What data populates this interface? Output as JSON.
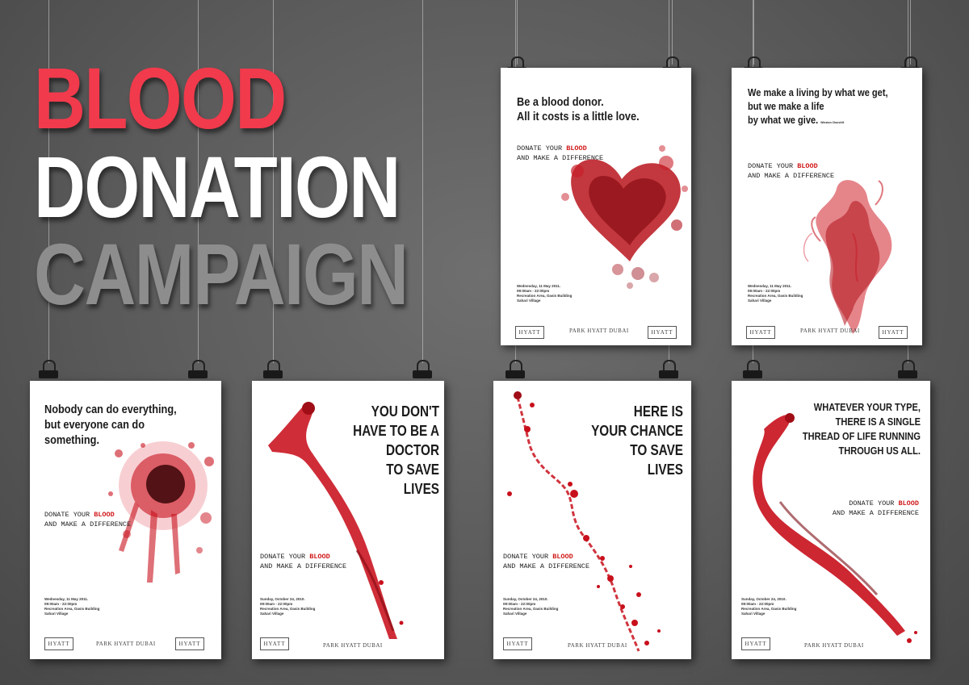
{
  "headline": {
    "line1": "BLOOD",
    "line2": "DONATION",
    "line3": "CAMPAIGN",
    "colors": {
      "line1": "#f13a4c",
      "line2": "#ffffff",
      "line3": "#8d8d8d"
    }
  },
  "posters": [
    {
      "id": "top-left",
      "quote_lines": [
        "Be a blood donor.",
        "All it costs is a little love."
      ],
      "cta_pre": "DONATE YOUR ",
      "cta_red": "BLOOD",
      "cta_line2": "AND MAKE A DIFFERENCE",
      "event": "Wednesday, 11 May 2011.\n09:00am - 22:00pm\nRecreation Area, Oasis Building\nSahari Village",
      "hotel": "PARK HYATT DUBAI",
      "art": "heart-splatter"
    },
    {
      "id": "top-right",
      "quote_lines": [
        "We make a living by what we get,",
        "but we make a life",
        "by what we give."
      ],
      "attribution": "Winston Churchill",
      "cta_pre": "DONATE YOUR ",
      "cta_red": "BLOOD",
      "cta_line2": "AND MAKE A DIFFERENCE",
      "event": "Wednesday, 11 May 2011.\n09:00am - 22:00pm\nRecreation Area, Oasis Building\nSahari Village",
      "hotel": "PARK HYATT DUBAI",
      "art": "smoke-blood"
    },
    {
      "id": "bottom-1",
      "quote_lines": [
        "Nobody can do everything,",
        "but everyone can do",
        "something."
      ],
      "cta_pre": "DONATE YOUR ",
      "cta_red": "BLOOD",
      "cta_line2": "AND MAKE A DIFFERENCE",
      "event": "Wednesday, 11 May 2011.\n09:00am - 22:00pm\nRecreation Area, Oasis Building\nSahari Village",
      "hotel": "PARK HYATT DUBAI",
      "art": "burst-splatter"
    },
    {
      "id": "bottom-2",
      "quote_lines": [
        "YOU DON'T",
        "HAVE TO BE A",
        "DOCTOR",
        "TO SAVE",
        "LIVES"
      ],
      "cta_pre": "DONATE YOUR ",
      "cta_red": "BLOOD",
      "cta_line2": "AND MAKE A DIFFERENCE",
      "event": "Sunday, October 24, 2010.\n09:00am - 22:00pm\nRecreation Area, Oasis Building\nSahari Village",
      "hotel": "PARK HYATT DUBAI",
      "art": "splash-stream"
    },
    {
      "id": "bottom-3",
      "quote_lines": [
        "HERE IS",
        "YOUR CHANCE",
        "TO SAVE",
        "LIVES"
      ],
      "cta_pre": "DONATE YOUR ",
      "cta_red": "BLOOD",
      "cta_line2": "AND MAKE A DIFFERENCE",
      "event": "Sunday, October 24, 2010.\n09:00am - 22:00pm\nRecreation Area, Oasis Building\nSahari Village",
      "hotel": "PARK HYATT DUBAI",
      "art": "drip-trail"
    },
    {
      "id": "bottom-4",
      "quote_lines": [
        "WHATEVER YOUR TYPE,",
        "THERE IS A SINGLE",
        "THREAD OF LIFE RUNNING",
        "THROUGH US ALL."
      ],
      "cta_pre": "DONATE YOUR ",
      "cta_red": "BLOOD",
      "cta_line2": "AND MAKE A DIFFERENCE",
      "event": "Sunday, October 24, 2010.\n09:00am - 22:00pm\nRecreation Area, Oasis Building\nSahari Village",
      "hotel": "PARK HYATT DUBAI",
      "art": "ribbon-thread"
    }
  ],
  "logo_text": "HYATT",
  "colors": {
    "blood": "#c8101c",
    "blood_dark": "#7a0a10",
    "ink": "#1b1b1b"
  }
}
